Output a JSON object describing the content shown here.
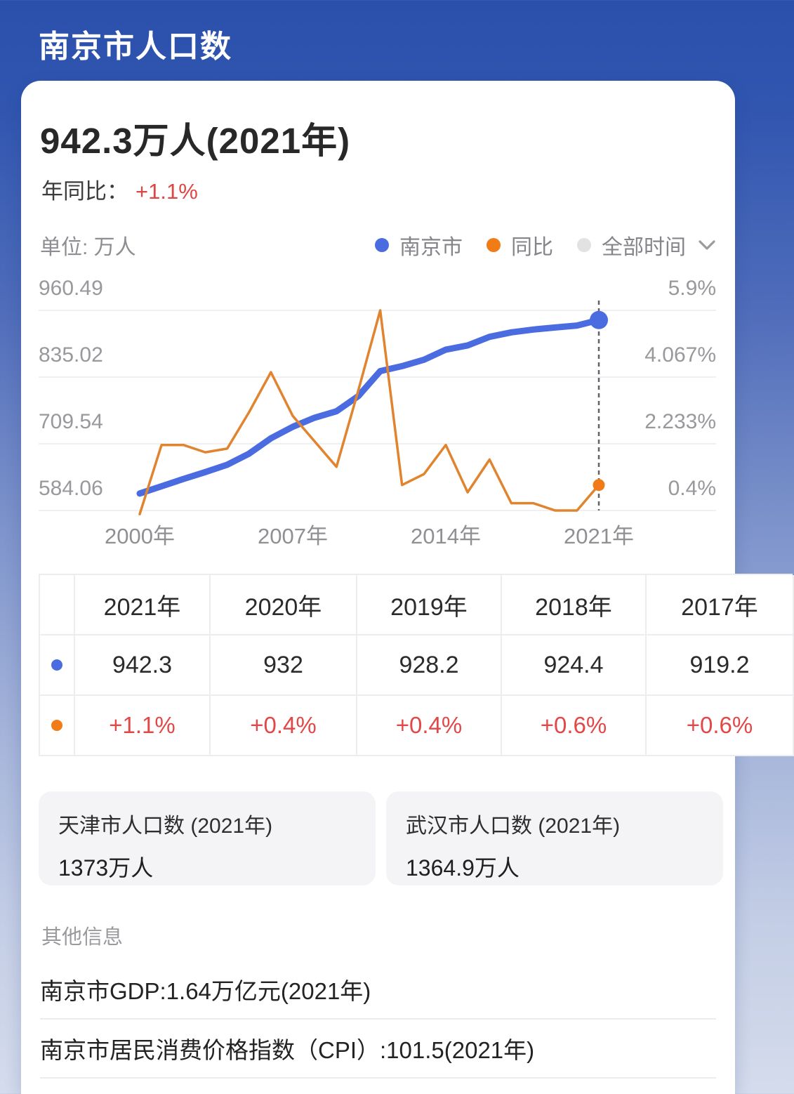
{
  "page": {
    "title": "南京市人口数"
  },
  "summary": {
    "value": "942.3万人(2021年)",
    "yoy_label": "年同比：",
    "yoy_value": "+1.1%"
  },
  "chart": {
    "unit_label": "单位: 万人",
    "legend": [
      {
        "label": "南京市",
        "color": "#4a6ce0"
      },
      {
        "label": "同比",
        "color": "#f07b17"
      },
      {
        "label": "全部时间",
        "color": "#e2e2e4",
        "dropdown": true
      }
    ]
  },
  "chart_data": {
    "type": "line",
    "title": "南京市人口数",
    "unit": "万人",
    "x": [
      2000,
      2001,
      2002,
      2003,
      2004,
      2005,
      2006,
      2007,
      2008,
      2009,
      2010,
      2011,
      2012,
      2013,
      2014,
      2015,
      2016,
      2017,
      2018,
      2019,
      2020,
      2021
    ],
    "x_tick_labels": [
      "2000年",
      "2007年",
      "2014年",
      "2021年"
    ],
    "x_tick_indices": [
      0,
      7,
      14,
      21
    ],
    "series": [
      {
        "key": "nanjing",
        "name": "南京市",
        "axis": "left",
        "color": "#4a6ce0",
        "dot_color": "#4a6ce0",
        "values": [
          616.0,
          629.6,
          643.4,
          656.3,
          670.1,
          690.9,
          719.9,
          741.5,
          758.5,
          770.7,
          799.2,
          846.3,
          855.6,
          867.6,
          886.7,
          894.6,
          910.7,
          919.2,
          924.4,
          928.2,
          932.0,
          942.3
        ]
      },
      {
        "key": "yoy",
        "name": "同比",
        "axis": "right",
        "color": "#e0842f",
        "dot_color": "#f07b17",
        "values": [
          0.3,
          2.2,
          2.2,
          2.0,
          2.1,
          3.1,
          4.2,
          3.0,
          2.3,
          1.6,
          3.7,
          5.9,
          1.1,
          1.4,
          2.2,
          0.9,
          1.8,
          0.6,
          0.6,
          0.4,
          0.4,
          1.1
        ]
      }
    ],
    "left_axis": {
      "min": 584.06,
      "max": 960.49,
      "tick_labels": [
        "960.49",
        "835.02",
        "709.54",
        "584.06"
      ]
    },
    "right_axis": {
      "min": 0.4,
      "max": 5.9,
      "tick_labels": [
        "5.9%",
        "4.067%",
        "2.233%",
        "0.4%"
      ]
    },
    "highlight_x": "2021年",
    "grid": true,
    "legend_position": "top-right"
  },
  "table": {
    "columns": [
      {
        "year": "2021年",
        "population": "942.3",
        "yoy": "+1.1%"
      },
      {
        "year": "2020年",
        "population": "932",
        "yoy": "+0.4%"
      },
      {
        "year": "2019年",
        "population": "928.2",
        "yoy": "+0.4%"
      },
      {
        "year": "2018年",
        "population": "924.4",
        "yoy": "+0.6%"
      },
      {
        "year": "2017年",
        "population": "919.2",
        "yoy": "+0.6%"
      }
    ]
  },
  "related": [
    {
      "title": "天津市人口数 (2021年)",
      "value": "1373万人"
    },
    {
      "title": "武汉市人口数 (2021年)",
      "value": "1364.9万人"
    }
  ],
  "other_info": {
    "heading": "其他信息",
    "rows": [
      "南京市GDP:1.64万亿元(2021年)",
      "南京市居民消费价格指数（CPI）:101.5(2021年)"
    ]
  },
  "colors": {
    "header_bg": "#2a50ac",
    "series_blue": "#4a6ce0",
    "series_orange_line": "#e0842f",
    "series_orange_dot": "#f07b17",
    "legend_gray_dot": "#e2e2e4",
    "negative_red": "#e04545",
    "axis_label_gray": "#98989d"
  }
}
